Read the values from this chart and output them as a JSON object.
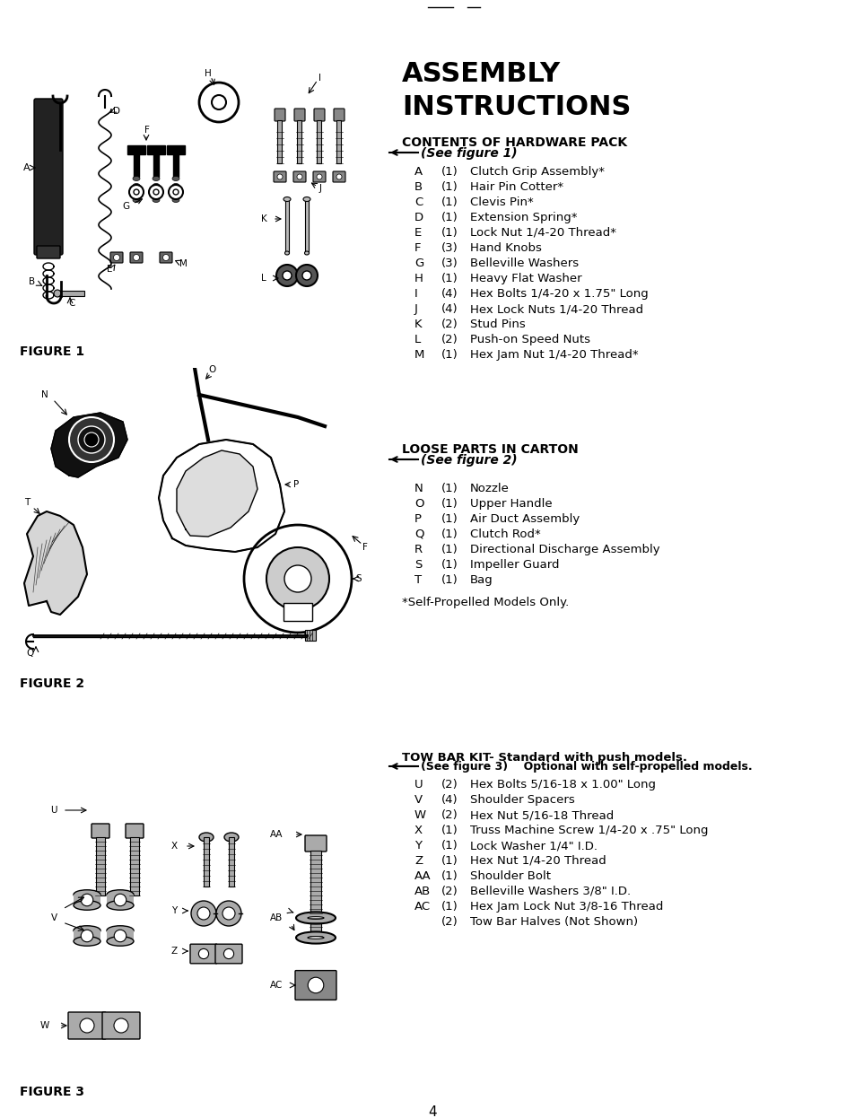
{
  "title_line1": "ASSEMBLY",
  "title_line2": "INSTRUCTIONS",
  "section1_header": "CONTENTS OF HARDWARE PACK",
  "section1_subheader": "(See figure 1)",
  "section1_items": [
    [
      "A",
      "(1)",
      "Clutch Grip Assembly*"
    ],
    [
      "B",
      "(1)",
      "Hair Pin Cotter*"
    ],
    [
      "C",
      "(1)",
      "Clevis Pin*"
    ],
    [
      "D",
      "(1)",
      "Extension Spring*"
    ],
    [
      "E",
      "(1)",
      "Lock Nut 1/4-20 Thread*"
    ],
    [
      "F",
      "(3)",
      "Hand Knobs"
    ],
    [
      "G",
      "(3)",
      "Belleville Washers"
    ],
    [
      "H",
      "(1)",
      "Heavy Flat Washer"
    ],
    [
      "I",
      "(4)",
      "Hex Bolts 1/4-20 x 1.75\" Long"
    ],
    [
      "J",
      "(4)",
      "Hex Lock Nuts 1/4-20 Thread"
    ],
    [
      "K",
      "(2)",
      "Stud Pins"
    ],
    [
      "L",
      "(2)",
      "Push-on Speed Nuts"
    ],
    [
      "M",
      "(1)",
      "Hex Jam Nut 1/4-20 Thread*"
    ]
  ],
  "section2_header": "LOOSE PARTS IN CARTON",
  "section2_subheader": "(See figure 2)",
  "section2_items": [
    [
      "N",
      "(1)",
      "Nozzle"
    ],
    [
      "O",
      "(1)",
      "Upper Handle"
    ],
    [
      "P",
      "(1)",
      "Air Duct Assembly"
    ],
    [
      "Q",
      "(1)",
      "Clutch Rod*"
    ],
    [
      "R",
      "(1)",
      "Directional Discharge Assembly"
    ],
    [
      "S",
      "(1)",
      "Impeller Guard"
    ],
    [
      "T",
      "(1)",
      "Bag"
    ]
  ],
  "section2_footnote": "*Self-Propelled Models Only.",
  "section3_header": "TOW BAR KIT- Standard with push models.",
  "section3_subheader": "(See figure 3)    Optional with self-propelled models.",
  "section3_items": [
    [
      "U",
      "(2)",
      "Hex Bolts 5/16-18 x 1.00\" Long"
    ],
    [
      "V",
      "(4)",
      "Shoulder Spacers"
    ],
    [
      "W",
      "(2)",
      "Hex Nut 5/16-18 Thread"
    ],
    [
      "X",
      "(1)",
      "Truss Machine Screw 1/4-20 x .75\" Long"
    ],
    [
      "Y",
      "(1)",
      "Lock Washer 1/4\" I.D."
    ],
    [
      "Z",
      "(1)",
      "Hex Nut 1/4-20 Thread"
    ],
    [
      "AA",
      "(1)",
      "Shoulder Bolt"
    ],
    [
      "AB",
      "(2)",
      "Belleville Washers 3/8\" I.D."
    ],
    [
      "AC",
      "(1)",
      "Hex Jam Lock Nut 3/8-16 Thread"
    ],
    [
      "",
      "(2)",
      "Tow Bar Halves (Not Shown)"
    ]
  ],
  "fig1_label": "FIGURE 1",
  "fig2_label": "FIGURE 2",
  "fig3_label": "FIGURE 3",
  "page_number": "4",
  "bg_color": "#ffffff",
  "text_color": "#000000"
}
